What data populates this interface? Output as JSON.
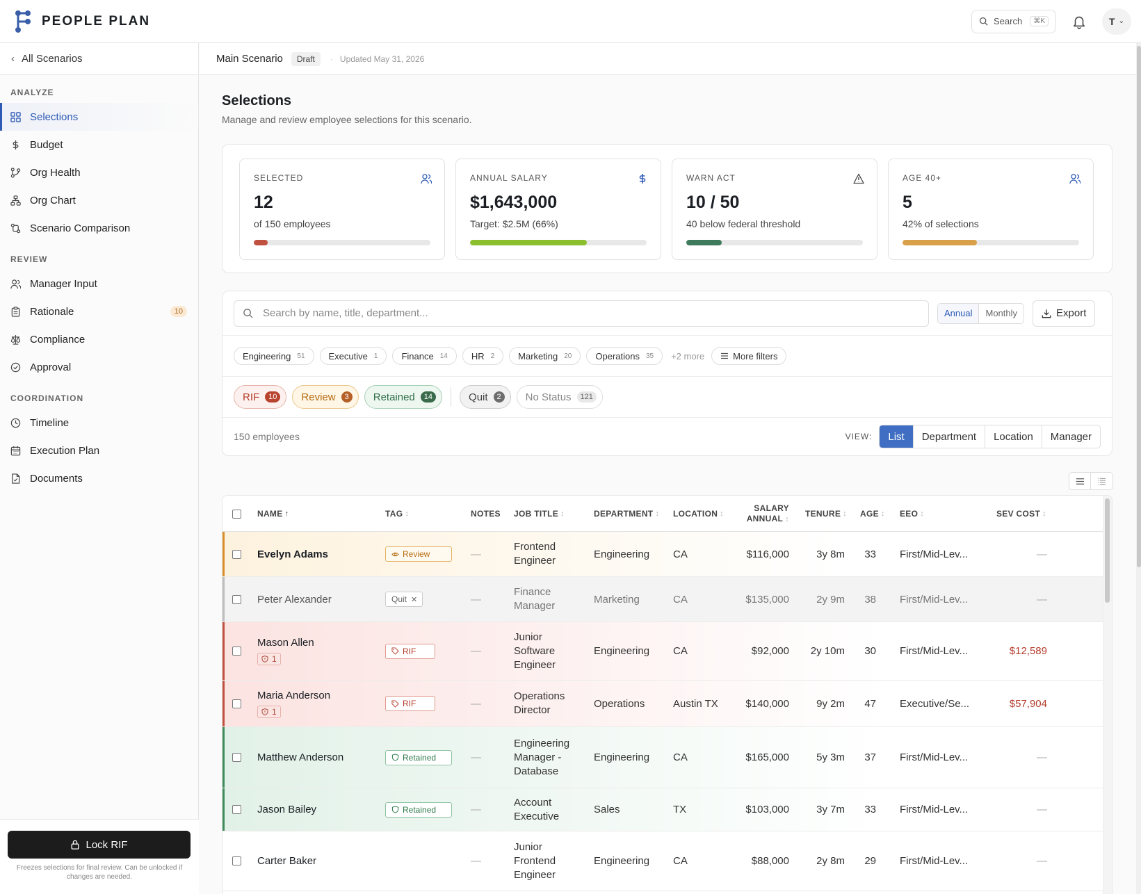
{
  "app": {
    "name": "PEOPLE PLAN",
    "search_label": "Search",
    "search_kbd": "⌘K",
    "avatar_initial": "T"
  },
  "colors": {
    "accent": "#2d5ab5",
    "rif": "#c0503f",
    "review": "#d9902a",
    "retained": "#3f8b5c"
  },
  "sidebar": {
    "back_label": "All Scenarios",
    "sections": [
      {
        "heading": "ANALYZE",
        "items": [
          {
            "label": "Selections",
            "icon": "grid-icon",
            "active": true
          },
          {
            "label": "Budget",
            "icon": "dollar-icon"
          },
          {
            "label": "Org Health",
            "icon": "branch-icon"
          },
          {
            "label": "Org Chart",
            "icon": "org-chart-icon"
          },
          {
            "label": "Scenario Comparison",
            "icon": "compare-icon"
          }
        ]
      },
      {
        "heading": "REVIEW",
        "items": [
          {
            "label": "Manager Input",
            "icon": "users-icon"
          },
          {
            "label": "Rationale",
            "icon": "clipboard-icon",
            "badge": "10"
          },
          {
            "label": "Compliance",
            "icon": "scale-icon"
          },
          {
            "label": "Approval",
            "icon": "check-circle-icon"
          }
        ]
      },
      {
        "heading": "COORDINATION",
        "items": [
          {
            "label": "Timeline",
            "icon": "clock-icon"
          },
          {
            "label": "Execution Plan",
            "icon": "calendar-icon"
          },
          {
            "label": "Documents",
            "icon": "document-icon"
          }
        ]
      }
    ],
    "lock_label": "Lock RIF",
    "lock_note": "Freezes selections for final review. Can be unlocked if changes are needed."
  },
  "subheader": {
    "scenario": "Main Scenario",
    "status": "Draft",
    "updated": "Updated May 31, 2026"
  },
  "page": {
    "title": "Selections",
    "subtitle": "Manage and review employee selections for this scenario."
  },
  "stats": [
    {
      "label": "SELECTED",
      "value": "12",
      "desc": "of 150 employees",
      "progress": 0.08,
      "color": "#c0503f",
      "icon": "users-icon"
    },
    {
      "label": "ANNUAL SALARY",
      "value": "$1,643,000",
      "desc": "Target: $2.5M (66%)",
      "progress": 0.66,
      "color": "#8cbf2e",
      "icon": "dollar-icon"
    },
    {
      "label": "WARN ACT",
      "value": "10 / 50",
      "desc": "40 below federal threshold",
      "progress": 0.2,
      "color": "#3f7a5c",
      "icon": "warning-icon"
    },
    {
      "label": "AGE 40+",
      "value": "5",
      "desc": "42% of selections",
      "progress": 0.42,
      "color": "#d9a04a",
      "icon": "users-icon"
    }
  ],
  "filters": {
    "search_placeholder": "Search by name, title, department...",
    "period": [
      "Annual",
      "Monthly"
    ],
    "export_label": "Export",
    "departments": [
      {
        "name": "Engineering",
        "count": "51"
      },
      {
        "name": "Executive",
        "count": "1"
      },
      {
        "name": "Finance",
        "count": "14"
      },
      {
        "name": "HR",
        "count": "2"
      },
      {
        "name": "Marketing",
        "count": "20"
      },
      {
        "name": "Operations",
        "count": "35"
      }
    ],
    "more_departments": "+2 more",
    "more_filters_label": "More filters",
    "statuses": [
      {
        "name": "RIF",
        "count": "10"
      },
      {
        "name": "Review",
        "count": "3"
      },
      {
        "name": "Retained",
        "count": "14"
      },
      {
        "name": "Quit",
        "count": "2"
      },
      {
        "name": "No Status",
        "count": "121"
      }
    ],
    "employee_count": "150 employees",
    "view_label": "VIEW:",
    "views": [
      "List",
      "Department",
      "Location",
      "Manager"
    ]
  },
  "table": {
    "columns": {
      "name": "NAME",
      "tag": "TAG",
      "notes": "NOTES",
      "job": "JOB TITLE",
      "dept": "DEPARTMENT",
      "loc": "LOCATION",
      "salary1": "SALARY",
      "salary2": "ANNUAL",
      "tenure": "TENURE",
      "age": "AGE",
      "eeo": "EEO",
      "sev": "SEV COST"
    },
    "rows": [
      {
        "name": "Evelyn Adams",
        "tag": "Review",
        "notes": "—",
        "job": "Frontend Engineer",
        "dept": "Engineering",
        "loc": "CA",
        "salary": "$116,000",
        "tenure": "3y 8m",
        "age": "33",
        "eeo": "First/Mid-Lev...",
        "sev": "—"
      },
      {
        "name": "Peter Alexander",
        "tag": "Quit",
        "notes": "—",
        "job": "Finance Manager",
        "dept": "Marketing",
        "loc": "CA",
        "salary": "$135,000",
        "tenure": "2y 9m",
        "age": "38",
        "eeo": "First/Mid-Lev...",
        "sev": "—"
      },
      {
        "name": "Mason Allen",
        "risk": "1",
        "tag": "RIF",
        "notes": "—",
        "job": "Junior Software Engineer",
        "dept": "Engineering",
        "loc": "CA",
        "salary": "$92,000",
        "tenure": "2y 10m",
        "age": "30",
        "eeo": "First/Mid-Lev...",
        "sev": "$12,589"
      },
      {
        "name": "Maria Anderson",
        "risk": "1",
        "tag": "RIF",
        "notes": "—",
        "job": "Operations Director",
        "dept": "Operations",
        "loc": "Austin TX",
        "salary": "$140,000",
        "tenure": "9y 2m",
        "age": "47",
        "eeo": "Executive/Se...",
        "sev": "$57,904"
      },
      {
        "name": "Matthew Anderson",
        "tag": "Retained",
        "notes": "—",
        "job": "Engineering Manager - Database",
        "dept": "Engineering",
        "loc": "CA",
        "salary": "$165,000",
        "tenure": "5y 3m",
        "age": "37",
        "eeo": "First/Mid-Lev...",
        "sev": "—"
      },
      {
        "name": "Jason Bailey",
        "tag": "Retained",
        "notes": "—",
        "job": "Account Executive",
        "dept": "Sales",
        "loc": "TX",
        "salary": "$103,000",
        "tenure": "3y 7m",
        "age": "33",
        "eeo": "First/Mid-Lev...",
        "sev": "—"
      },
      {
        "name": "Carter Baker",
        "tag": "",
        "notes": "—",
        "job": "Junior Frontend Engineer",
        "dept": "Engineering",
        "loc": "CA",
        "salary": "$88,000",
        "tenure": "2y 8m",
        "age": "29",
        "eeo": "First/Mid-Lev...",
        "sev": "—"
      }
    ]
  }
}
